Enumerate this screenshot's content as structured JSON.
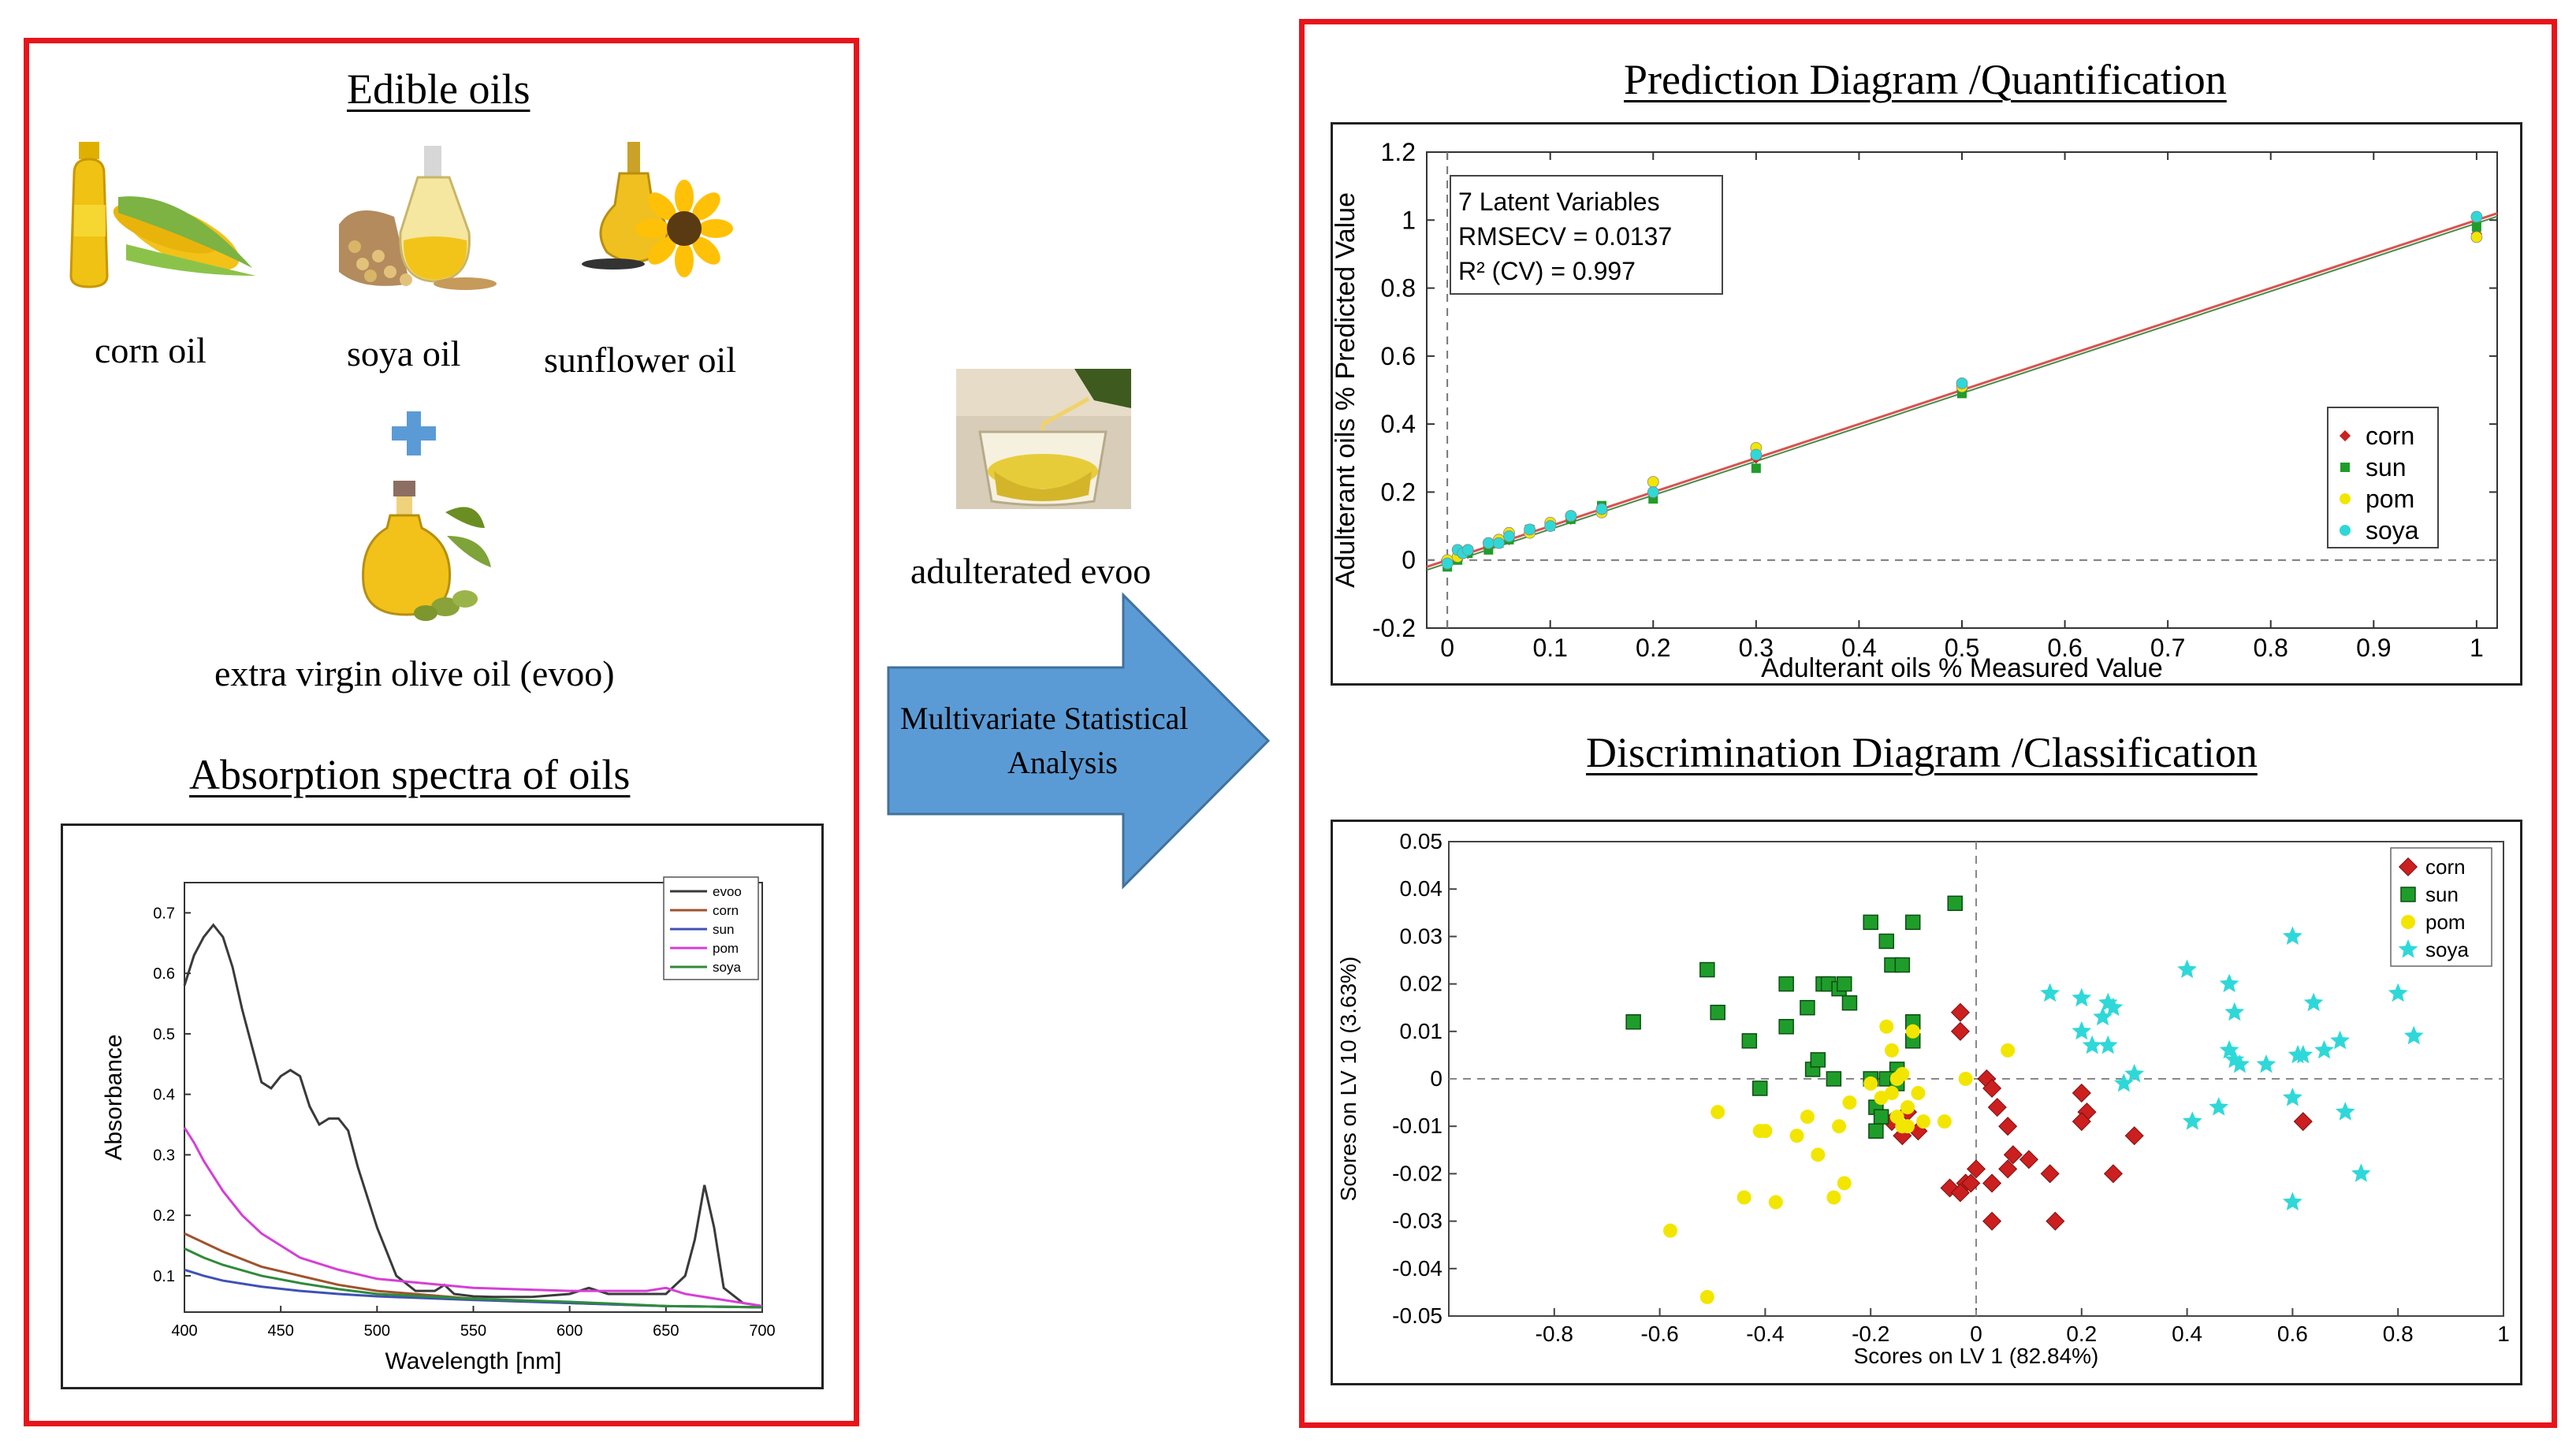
{
  "left_panel": {
    "title": "Edible oils",
    "oils": [
      {
        "label": "corn oil",
        "icon": "corn-oil-bottle-icon"
      },
      {
        "label": "soya oil",
        "icon": "soy-oil-jug-icon"
      },
      {
        "label": "sunflower oil",
        "icon": "sunflower-oil-flask-icon"
      }
    ],
    "plus": "+",
    "evoo_label": "extra virgin olive oil (evoo)",
    "spectra_title": "Absorption spectra of oils"
  },
  "middle": {
    "adulterated_label": "adulterated evoo",
    "arrow_text_line1": "Multivariate  Statistical",
    "arrow_text_line2": "Analysis"
  },
  "right_panel": {
    "prediction_title": "Prediction Diagram /Quantification",
    "classification_title": "Discrimination Diagram /Classification"
  },
  "colors": {
    "frame": "#e8141b",
    "arrow": "#5b9bd5",
    "corn": "#cc1f1f",
    "sun": "#1f9d2a",
    "pom": "#f2e600",
    "soya": "#2fd8d8",
    "evoo_line": "#3a3a3a",
    "corn_line": "#a0522d",
    "sun_line": "#3f51b5",
    "pom_line": "#d63fd6",
    "soya_line": "#2e8b3a"
  },
  "chart_data": [
    {
      "type": "line",
      "title": "Absorption spectra of oils",
      "xlabel": "Wavelength [nm]",
      "ylabel": "Absorbance",
      "xlim": [
        400,
        700
      ],
      "ylim": [
        0.04,
        0.75
      ],
      "xticks": [
        "400",
        "450",
        "500",
        "550",
        "600",
        "650",
        "700"
      ],
      "yticks": [
        "0.1",
        "0.2",
        "0.3",
        "0.4",
        "0.5",
        "0.6",
        "0.7"
      ],
      "legend": [
        "evoo",
        "corn",
        "sun",
        "pom",
        "soya"
      ],
      "legend_position": "top-right",
      "series": [
        {
          "name": "evoo",
          "x": [
            400,
            405,
            410,
            415,
            420,
            425,
            430,
            440,
            445,
            450,
            455,
            460,
            465,
            470,
            475,
            480,
            485,
            490,
            500,
            510,
            520,
            530,
            535,
            540,
            550,
            560,
            580,
            600,
            610,
            620,
            640,
            650,
            660,
            665,
            670,
            675,
            680,
            690,
            700
          ],
          "y": [
            0.58,
            0.63,
            0.66,
            0.68,
            0.66,
            0.61,
            0.54,
            0.42,
            0.41,
            0.43,
            0.44,
            0.43,
            0.38,
            0.35,
            0.36,
            0.36,
            0.34,
            0.28,
            0.18,
            0.1,
            0.075,
            0.075,
            0.085,
            0.07,
            0.066,
            0.065,
            0.065,
            0.07,
            0.08,
            0.07,
            0.07,
            0.07,
            0.1,
            0.16,
            0.25,
            0.18,
            0.08,
            0.055,
            0.05
          ]
        },
        {
          "name": "corn",
          "x": [
            400,
            410,
            420,
            440,
            460,
            480,
            500,
            550,
            600,
            650,
            700
          ],
          "y": [
            0.17,
            0.155,
            0.14,
            0.115,
            0.1,
            0.085,
            0.075,
            0.062,
            0.055,
            0.05,
            0.048
          ]
        },
        {
          "name": "sun",
          "x": [
            400,
            410,
            420,
            440,
            460,
            480,
            500,
            550,
            600,
            650,
            700
          ],
          "y": [
            0.11,
            0.1,
            0.092,
            0.082,
            0.075,
            0.07,
            0.066,
            0.06,
            0.055,
            0.05,
            0.048
          ]
        },
        {
          "name": "pom",
          "x": [
            400,
            405,
            410,
            420,
            430,
            440,
            460,
            480,
            500,
            550,
            600,
            640,
            650,
            660,
            700
          ],
          "y": [
            0.345,
            0.32,
            0.29,
            0.24,
            0.2,
            0.17,
            0.13,
            0.11,
            0.095,
            0.08,
            0.075,
            0.075,
            0.08,
            0.07,
            0.05
          ]
        },
        {
          "name": "soya",
          "x": [
            400,
            410,
            420,
            440,
            460,
            480,
            500,
            550,
            600,
            650,
            700
          ],
          "y": [
            0.145,
            0.13,
            0.118,
            0.1,
            0.088,
            0.078,
            0.07,
            0.062,
            0.057,
            0.05,
            0.048
          ]
        }
      ]
    },
    {
      "type": "scatter",
      "title": "Prediction Diagram /Quantification",
      "xlabel": "Adulterant oils % Measured Value",
      "ylabel": "Adulterant oils % Predicted Value",
      "xlim": [
        -0.02,
        1.02
      ],
      "ylim": [
        -0.2,
        1.2
      ],
      "xticks": [
        "0",
        "0.1",
        "0.2",
        "0.3",
        "0.4",
        "0.5",
        "0.6",
        "0.7",
        "0.8",
        "0.9",
        "1"
      ],
      "yticks": [
        "-0.2",
        "0",
        "0.2",
        "0.4",
        "0.6",
        "0.8",
        "1",
        "1.2"
      ],
      "annotation": [
        "7 Latent Variables",
        "RMSECV = 0.0137",
        "R² (CV) = 0.997"
      ],
      "fit_line": [
        [
          -0.02,
          -0.02
        ],
        [
          1.02,
          1.02
        ]
      ],
      "legend": [
        "corn",
        "sun",
        "pom",
        "soya"
      ],
      "legend_position": "right",
      "series": [
        {
          "name": "corn",
          "x": [
            0,
            0.01,
            0.02,
            0.04,
            0.05,
            0.06,
            0.08,
            0.1,
            0.12,
            0.15,
            0.2,
            0.3,
            0.5,
            1
          ],
          "y": [
            -0.01,
            0.01,
            0.02,
            0.04,
            0.05,
            0.06,
            0.08,
            0.1,
            0.12,
            0.15,
            0.2,
            0.3,
            0.5,
            0.96
          ]
        },
        {
          "name": "sun",
          "x": [
            0,
            0.01,
            0.02,
            0.04,
            0.05,
            0.06,
            0.08,
            0.1,
            0.12,
            0.15,
            0.2,
            0.3,
            0.5,
            1
          ],
          "y": [
            -0.02,
            0.0,
            0.02,
            0.03,
            0.05,
            0.06,
            0.09,
            0.1,
            0.12,
            0.16,
            0.18,
            0.27,
            0.49,
            0.98
          ]
        },
        {
          "name": "pom",
          "x": [
            0,
            0.01,
            0.02,
            0.04,
            0.05,
            0.06,
            0.08,
            0.1,
            0.12,
            0.15,
            0.2,
            0.3,
            0.5,
            1
          ],
          "y": [
            0.0,
            0.01,
            0.03,
            0.05,
            0.06,
            0.08,
            0.08,
            0.11,
            0.13,
            0.14,
            0.23,
            0.33,
            0.51,
            0.95
          ]
        },
        {
          "name": "soya",
          "x": [
            0,
            0.01,
            0.015,
            0.02,
            0.04,
            0.05,
            0.06,
            0.08,
            0.1,
            0.12,
            0.15,
            0.2,
            0.3,
            0.5,
            1
          ],
          "y": [
            -0.01,
            0.03,
            0.02,
            0.03,
            0.05,
            0.05,
            0.07,
            0.09,
            0.1,
            0.13,
            0.15,
            0.2,
            0.31,
            0.52,
            1.01
          ]
        }
      ]
    },
    {
      "type": "scatter",
      "title": "Discrimination Diagram /Classification",
      "xlabel": "Scores on LV 1 (82.84%)",
      "ylabel": "Scores on LV 10 (3.63%)",
      "xlim": [
        -1,
        1
      ],
      "ylim": [
        -0.05,
        0.05
      ],
      "xticks": [
        "-0.8",
        "-0.6",
        "-0.4",
        "-0.2",
        "0",
        "0.2",
        "0.4",
        "0.6",
        "0.8",
        "1"
      ],
      "yticks": [
        "-0.05",
        "-0.04",
        "-0.03",
        "-0.02",
        "-0.01",
        "0",
        "0.01",
        "0.02",
        "0.03",
        "0.04",
        "0.05"
      ],
      "legend": [
        "corn",
        "sun",
        "pom",
        "soya"
      ],
      "legend_position": "top-right",
      "series": [
        {
          "name": "corn",
          "marker": "diamond",
          "x": [
            -0.03,
            -0.03,
            -0.02,
            -0.05,
            -0.14,
            -0.11,
            -0.16,
            -0.13,
            0.02,
            0.03,
            0.04,
            0.06,
            0.03,
            0.07,
            0.06,
            0.1,
            0.2,
            0.21,
            0.2,
            0.14,
            0.15,
            0.26,
            0.3,
            0.62,
            0.03,
            -0.03,
            -0.01,
            0.0
          ],
          "y": [
            0.014,
            0.01,
            -0.022,
            -0.023,
            -0.012,
            -0.011,
            -0.009,
            -0.007,
            0.0,
            -0.002,
            -0.006,
            -0.01,
            -0.022,
            -0.016,
            -0.019,
            -0.017,
            -0.003,
            -0.007,
            -0.009,
            -0.02,
            -0.03,
            -0.02,
            -0.012,
            -0.009,
            -0.03,
            -0.024,
            -0.022,
            -0.019
          ]
        },
        {
          "name": "sun",
          "x": [
            -0.65,
            -0.51,
            -0.49,
            -0.43,
            -0.41,
            -0.36,
            -0.36,
            -0.32,
            -0.31,
            -0.29,
            -0.3,
            -0.28,
            -0.27,
            -0.26,
            -0.25,
            -0.24,
            -0.2,
            -0.19,
            -0.17,
            -0.16,
            -0.15,
            -0.14,
            -0.12,
            -0.12,
            -0.12,
            -0.04,
            -0.2,
            -0.19,
            -0.18,
            -0.17,
            -0.15
          ],
          "y": [
            0.012,
            0.023,
            0.014,
            0.008,
            -0.002,
            0.02,
            0.011,
            0.015,
            0.002,
            0.02,
            0.004,
            0.02,
            0.0,
            0.019,
            0.02,
            0.016,
            0.0,
            -0.006,
            0.029,
            0.024,
            0.002,
            0.024,
            0.008,
            0.012,
            0.033,
            0.037,
            0.033,
            -0.011,
            -0.008,
            0.0,
            -0.001
          ],
          "marker": "square"
        },
        {
          "name": "pom",
          "marker": "circle",
          "x": [
            -0.58,
            -0.51,
            -0.49,
            -0.44,
            -0.41,
            -0.38,
            -0.34,
            -0.32,
            -0.3,
            -0.27,
            -0.26,
            -0.25,
            -0.24,
            -0.2,
            -0.18,
            -0.16,
            -0.15,
            -0.14,
            -0.13,
            -0.12,
            -0.1,
            -0.06,
            -0.02,
            0.06,
            -0.15,
            -0.17,
            -0.16,
            -0.14,
            -0.13,
            -0.11,
            -0.4
          ],
          "y": [
            -0.032,
            -0.046,
            -0.007,
            -0.025,
            -0.011,
            -0.026,
            -0.012,
            -0.008,
            -0.016,
            -0.025,
            -0.01,
            -0.022,
            -0.005,
            -0.001,
            -0.004,
            0.006,
            0.0,
            0.001,
            -0.006,
            0.01,
            -0.009,
            -0.009,
            0.0,
            0.006,
            -0.008,
            0.011,
            -0.003,
            -0.01,
            -0.01,
            -0.003,
            -0.011
          ]
        },
        {
          "name": "soya",
          "marker": "star",
          "x": [
            0.14,
            0.2,
            0.22,
            0.25,
            0.26,
            0.25,
            0.24,
            0.28,
            0.3,
            0.4,
            0.41,
            0.48,
            0.49,
            0.5,
            0.48,
            0.46,
            0.55,
            0.6,
            0.6,
            0.61,
            0.62,
            0.64,
            0.66,
            0.69,
            0.7,
            0.73,
            0.8,
            0.83,
            0.49,
            0.6,
            0.2
          ],
          "y": [
            0.018,
            0.017,
            0.007,
            0.016,
            0.015,
            0.007,
            0.013,
            -0.001,
            0.001,
            0.023,
            -0.009,
            0.02,
            0.014,
            0.003,
            0.006,
            -0.006,
            0.003,
            0.03,
            -0.004,
            0.005,
            0.005,
            0.016,
            0.006,
            0.008,
            -0.007,
            -0.02,
            0.018,
            0.009,
            0.004,
            -0.026,
            0.01
          ]
        }
      ]
    }
  ]
}
